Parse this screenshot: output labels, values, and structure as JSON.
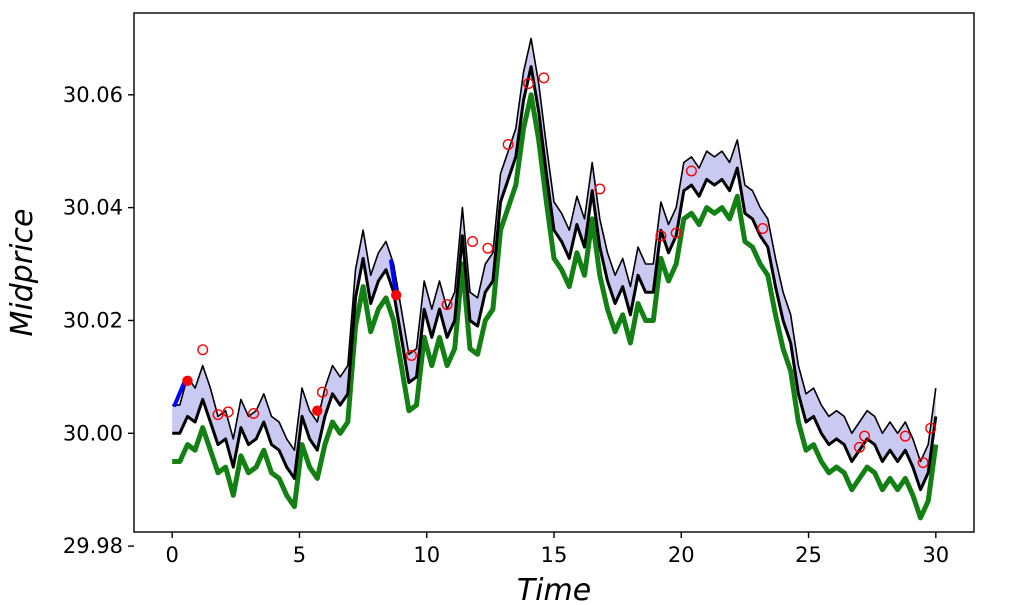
{
  "chart_data": {
    "type": "line",
    "title": "",
    "xlabel": "Time",
    "ylabel": "Midprice",
    "xlim": [
      -1.5,
      31.5
    ],
    "ylim": [
      29.9825,
      30.0745
    ],
    "xticks": [
      0,
      5,
      10,
      15,
      20,
      25,
      30
    ],
    "xtick_labels": [
      "0",
      "5",
      "10",
      "15",
      "20",
      "25",
      "30"
    ],
    "yticks": [
      29.98,
      30.0,
      30.02,
      30.04,
      30.06
    ],
    "ytick_labels": [
      "29.98",
      "30.00",
      "30.02",
      "30.04",
      "30.06"
    ],
    "grid": false,
    "legend": "none",
    "x": [
      0,
      0.3,
      0.6,
      0.9,
      1.2,
      1.5,
      1.8,
      2.1,
      2.4,
      2.7,
      3.0,
      3.3,
      3.6,
      3.9,
      4.2,
      4.5,
      4.8,
      5.1,
      5.4,
      5.7,
      6.0,
      6.3,
      6.6,
      6.9,
      7.2,
      7.5,
      7.8,
      8.1,
      8.4,
      8.7,
      9.0,
      9.3,
      9.6,
      9.9,
      10.2,
      10.5,
      10.8,
      11.1,
      11.4,
      11.7,
      12.0,
      12.3,
      12.6,
      12.9,
      13.2,
      13.5,
      13.8,
      14.1,
      14.4,
      14.7,
      15.0,
      15.3,
      15.6,
      15.9,
      16.2,
      16.5,
      16.8,
      17.1,
      17.4,
      17.7,
      18.0,
      18.3,
      18.6,
      18.9,
      19.2,
      19.5,
      19.8,
      20.1,
      20.4,
      20.7,
      21.0,
      21.3,
      21.6,
      21.9,
      22.2,
      22.5,
      22.8,
      23.1,
      23.4,
      23.7,
      24.0,
      24.3,
      24.6,
      24.9,
      25.2,
      25.5,
      25.8,
      26.1,
      26.4,
      26.7,
      27.0,
      27.3,
      27.6,
      27.9,
      28.2,
      28.5,
      28.8,
      29.1,
      29.4,
      29.7,
      30.0
    ],
    "series": [
      {
        "color": "#000000",
        "role": "upper",
        "values": [
          30.005,
          30.005,
          30.01,
          30.008,
          30.012,
          30.008,
          30.003,
          30.004,
          29.999,
          30.006,
          30.003,
          30.004,
          30.007,
          30.003,
          30.002,
          29.999,
          29.997,
          30.008,
          30.004,
          30.002,
          30.008,
          30.012,
          30.01,
          30.012,
          30.029,
          30.036,
          30.028,
          30.032,
          30.034,
          30.03,
          30.022,
          30.014,
          30.015,
          30.027,
          30.022,
          30.027,
          30.022,
          30.025,
          30.04,
          30.025,
          30.024,
          30.03,
          30.032,
          30.046,
          30.05,
          30.054,
          30.064,
          30.07,
          30.062,
          30.051,
          30.041,
          30.039,
          30.036,
          30.042,
          30.038,
          30.048,
          30.038,
          30.032,
          30.028,
          30.031,
          30.026,
          30.033,
          30.03,
          30.03,
          30.041,
          30.037,
          30.04,
          30.048,
          30.049,
          30.047,
          30.05,
          30.049,
          30.05,
          30.048,
          30.052,
          30.044,
          30.043,
          30.04,
          30.038,
          30.031,
          30.025,
          30.021,
          30.012,
          30.007,
          30.008,
          30.005,
          30.003,
          30.004,
          30.003,
          30.0,
          30.002,
          30.004,
          30.003,
          30.0,
          30.002,
          30.0,
          30.002,
          29.999,
          29.995,
          29.998,
          30.008
        ]
      },
      {
        "color": "#000000",
        "role": "mid",
        "values": [
          30.0,
          30.0,
          30.003,
          30.002,
          30.006,
          30.002,
          29.998,
          29.999,
          29.994,
          30.001,
          29.998,
          29.999,
          30.002,
          29.998,
          29.997,
          29.994,
          29.992,
          30.003,
          29.999,
          29.997,
          30.003,
          30.007,
          30.005,
          30.007,
          30.024,
          30.031,
          30.023,
          30.027,
          30.029,
          30.025,
          30.017,
          30.009,
          30.01,
          30.022,
          30.017,
          30.022,
          30.017,
          30.02,
          30.035,
          30.02,
          30.019,
          30.025,
          30.027,
          30.041,
          30.045,
          30.049,
          30.059,
          30.065,
          30.057,
          30.046,
          30.036,
          30.034,
          30.031,
          30.037,
          30.033,
          30.043,
          30.033,
          30.027,
          30.023,
          30.026,
          30.021,
          30.028,
          30.025,
          30.025,
          30.036,
          30.032,
          30.035,
          30.043,
          30.044,
          30.042,
          30.045,
          30.044,
          30.045,
          30.043,
          30.047,
          30.039,
          30.038,
          30.035,
          30.033,
          30.026,
          30.02,
          30.016,
          30.007,
          30.002,
          30.003,
          30.0,
          29.998,
          29.999,
          29.998,
          29.995,
          29.997,
          29.999,
          29.998,
          29.995,
          29.997,
          29.995,
          29.997,
          29.994,
          29.99,
          29.993,
          30.003
        ]
      },
      {
        "color": "#128012",
        "role": "lower",
        "values": [
          29.995,
          29.995,
          29.998,
          29.997,
          30.001,
          29.997,
          29.993,
          29.994,
          29.989,
          29.996,
          29.993,
          29.994,
          29.997,
          29.993,
          29.992,
          29.989,
          29.987,
          29.998,
          29.994,
          29.992,
          29.998,
          30.002,
          30.0,
          30.002,
          30.019,
          30.026,
          30.018,
          30.022,
          30.024,
          30.02,
          30.012,
          30.004,
          30.005,
          30.017,
          30.012,
          30.017,
          30.012,
          30.015,
          30.03,
          30.015,
          30.014,
          30.02,
          30.022,
          30.036,
          30.04,
          30.044,
          30.054,
          30.06,
          30.052,
          30.041,
          30.031,
          30.029,
          30.026,
          30.032,
          30.028,
          30.038,
          30.028,
          30.022,
          30.018,
          30.021,
          30.016,
          30.023,
          30.02,
          30.02,
          30.031,
          30.027,
          30.03,
          30.038,
          30.039,
          30.037,
          30.04,
          30.039,
          30.04,
          30.038,
          30.042,
          30.034,
          30.033,
          30.03,
          30.028,
          30.021,
          30.015,
          30.011,
          30.002,
          29.997,
          29.998,
          29.995,
          29.993,
          29.994,
          29.993,
          29.99,
          29.992,
          29.994,
          29.993,
          29.99,
          29.992,
          29.99,
          29.992,
          29.989,
          29.985,
          29.988,
          29.998
        ]
      }
    ],
    "band": {
      "fill": "#c9c9f2",
      "between": [
        "upper",
        "mid"
      ]
    },
    "blue_segments": [
      {
        "color": "#0000ff",
        "x": [
          0.1,
          0.5
        ],
        "y": [
          30.005,
          30.0093
        ]
      },
      {
        "color": "#0000ff",
        "x": [
          8.6,
          8.8
        ],
        "y": [
          30.0305,
          30.0245
        ]
      }
    ],
    "filled_markers": {
      "color": "#ff0000",
      "points": [
        [
          0.6,
          30.0093
        ],
        [
          5.7,
          30.004
        ],
        [
          8.8,
          30.0245
        ]
      ]
    },
    "open_markers": {
      "color": "#ff0000",
      "points": [
        [
          1.2,
          30.0148
        ],
        [
          1.8,
          30.0033
        ],
        [
          2.2,
          30.0038
        ],
        [
          3.2,
          30.0035
        ],
        [
          5.9,
          30.0073
        ],
        [
          9.4,
          30.0138
        ],
        [
          10.8,
          30.0228
        ],
        [
          11.8,
          30.034
        ],
        [
          12.4,
          30.0328
        ],
        [
          13.2,
          30.0512
        ],
        [
          14.0,
          30.062
        ],
        [
          14.6,
          30.063
        ],
        [
          16.8,
          30.0433
        ],
        [
          19.2,
          30.035
        ],
        [
          19.8,
          30.0355
        ],
        [
          20.4,
          30.0465
        ],
        [
          23.2,
          30.0363
        ],
        [
          27.0,
          29.9975
        ],
        [
          27.2,
          29.9995
        ],
        [
          28.8,
          29.9995
        ],
        [
          29.5,
          29.9948
        ],
        [
          29.8,
          30.0009
        ]
      ]
    }
  }
}
